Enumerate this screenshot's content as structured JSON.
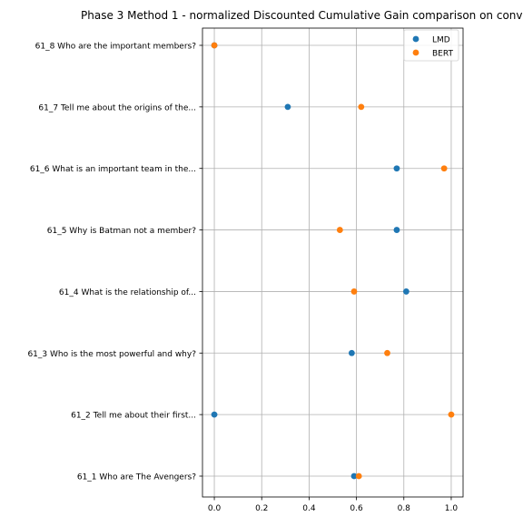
{
  "chart_data": {
    "type": "scatter",
    "title": "Phase 3 Method 1 - normalized Discounted Cumulative Gain comparison on conv",
    "xlabel": "",
    "ylabel": "",
    "xlim": [
      -0.05,
      1.05
    ],
    "x_ticks": [
      "0.0",
      "0.2",
      "0.4",
      "0.6",
      "0.8",
      "1.0"
    ],
    "grid": true,
    "legend_position": "top-right",
    "categories": [
      "61_1 Who are The Avengers?",
      "61_2 Tell me about their first...",
      "61_3 Who is the most powerful and why?",
      "61_4 What is the relationship of...",
      "61_5 Why is Batman not a member?",
      "61_6 What is an important team in the...",
      "61_7 Tell me about the origins of the...",
      "61_8 Who are the important members?"
    ],
    "series": [
      {
        "name": "LMD",
        "color": "#1f77b4",
        "values": [
          0.59,
          0.0,
          0.58,
          0.81,
          0.77,
          0.77,
          0.31,
          0.0
        ]
      },
      {
        "name": "BERT",
        "color": "#ff7f0e",
        "values": [
          0.61,
          1.0,
          0.73,
          0.59,
          0.53,
          0.97,
          0.62,
          0.0
        ]
      }
    ]
  }
}
